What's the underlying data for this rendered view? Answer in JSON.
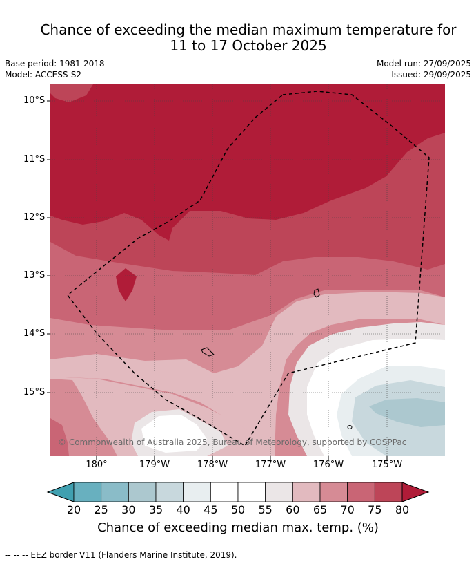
{
  "title": {
    "line1": "Chance of exceeding the median maximum temperature for",
    "line2": "11 to 17 October 2025"
  },
  "meta": {
    "base_period": "Base period: 1981-2018",
    "model": "Model: ACCESS-S2",
    "model_run": "Model run: 27/09/2025",
    "issued": "Issued: 29/09/2025"
  },
  "map": {
    "lat_labels": [
      "10°S",
      "11°S",
      "12°S",
      "13°S",
      "14°S",
      "15°S"
    ],
    "lon_labels": [
      "180°",
      "179°W",
      "178°W",
      "177°W",
      "176°W",
      "175°W"
    ],
    "copyright": "© Commonwealth of Australia 2025, Bureau of Meteorology, supported by COSPPac"
  },
  "colorbar": {
    "ticks": [
      "20",
      "25",
      "30",
      "35",
      "40",
      "45",
      "50",
      "55",
      "60",
      "65",
      "70",
      "75",
      "80"
    ],
    "colors": [
      "#40a0b0",
      "#68b0bf",
      "#8abcc8",
      "#acc8cf",
      "#c8d8dd",
      "#e8eef0",
      "#ffffff",
      "#ffffff",
      "#ebe6e7",
      "#e2babf",
      "#d68b95",
      "#c96575",
      "#bd4558",
      "#b01c38"
    ],
    "label": "Chance of exceeding median max. temp. (%)"
  },
  "footnote": "--  --  -- EEZ border V11 (Flanders Marine Institute, 2019)."
}
